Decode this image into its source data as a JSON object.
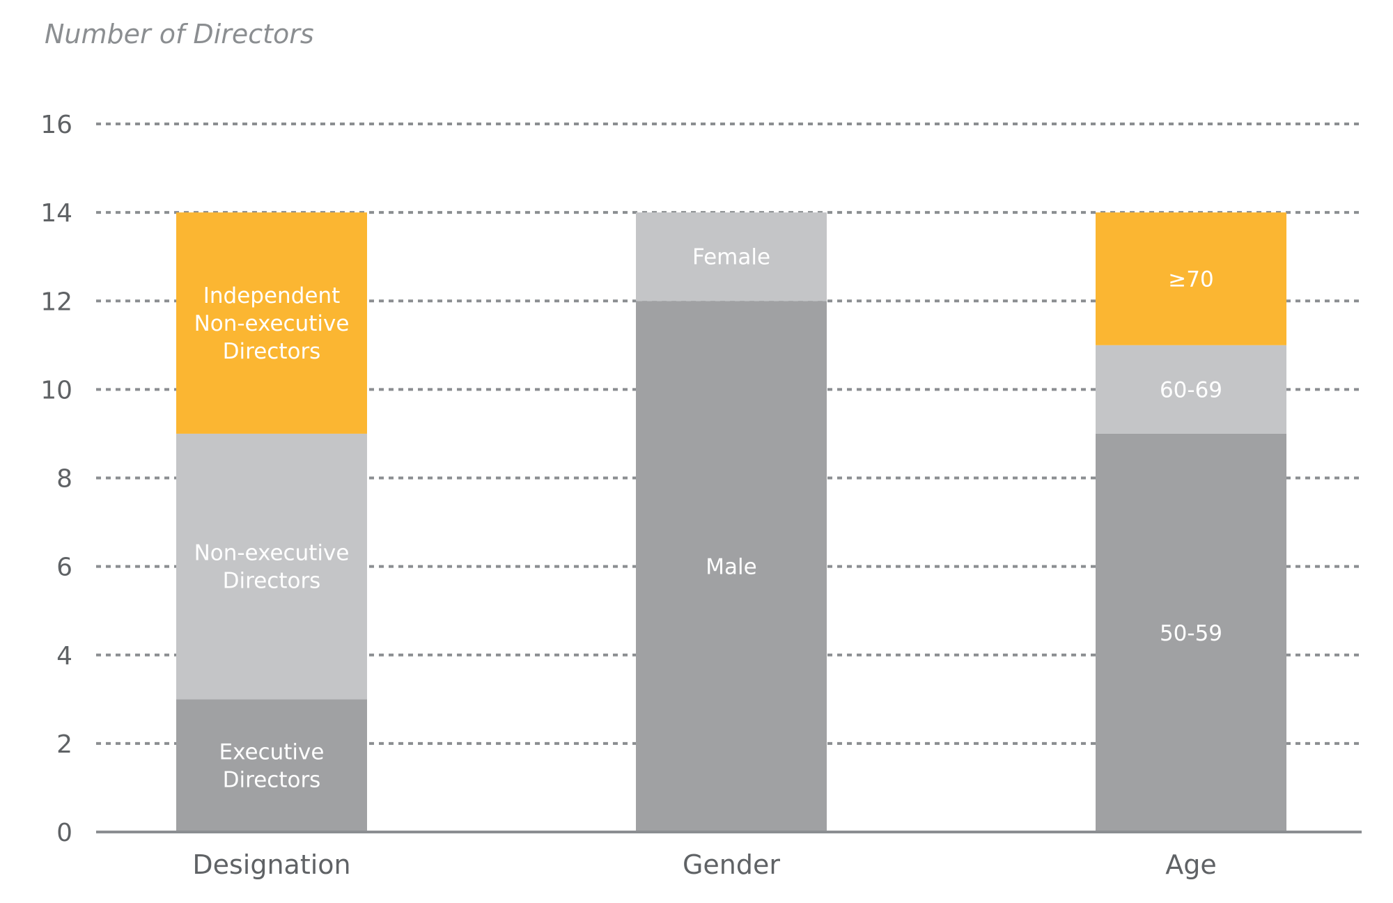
{
  "chart_data": {
    "type": "bar",
    "stacked": true,
    "ylabel": "Number of Directors",
    "xlabel": "",
    "ylim": [
      0,
      16
    ],
    "yticks": [
      0,
      2,
      4,
      6,
      8,
      10,
      12,
      14,
      16
    ],
    "grid": "dashed horizontal",
    "categories": [
      "Designation",
      "Gender",
      "Age"
    ],
    "stacks": [
      {
        "category": "Designation",
        "segments": [
          {
            "label": "Executive Directors",
            "value": 3,
            "color": "#a0a1a3"
          },
          {
            "label": "Non-executive Directors",
            "value": 6,
            "color": "#c4c5c7"
          },
          {
            "label": "Independent Non-executive Directors",
            "value": 5,
            "color": "#fbb632"
          }
        ]
      },
      {
        "category": "Gender",
        "segments": [
          {
            "label": "Male",
            "value": 12,
            "color": "#a0a1a3"
          },
          {
            "label": "Female",
            "value": 2,
            "color": "#c4c5c7"
          }
        ]
      },
      {
        "category": "Age",
        "segments": [
          {
            "label": "50-59",
            "value": 9,
            "color": "#a0a1a3"
          },
          {
            "label": "60-69",
            "value": 2,
            "color": "#c4c5c7"
          },
          {
            "label": "≥70",
            "value": 3,
            "color": "#fbb632"
          }
        ]
      }
    ]
  },
  "colors": {
    "grid": "#8b8e91",
    "axis": "#8b8e91",
    "text": "#5f6265"
  }
}
